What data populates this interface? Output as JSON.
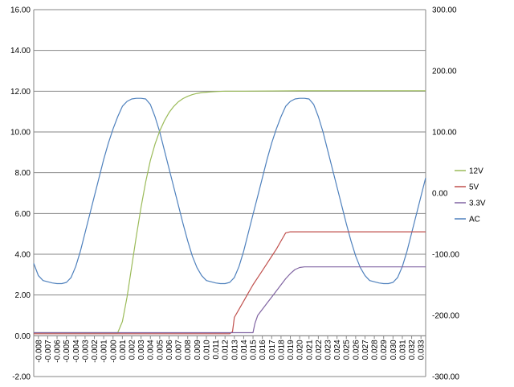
{
  "chart_data": {
    "type": "line",
    "title": "",
    "xlabel": "",
    "ylabel": "",
    "y2label": "",
    "grid": true,
    "legend_position": "right",
    "x_categories": [
      "-0.008",
      "-0.007",
      "-0.006",
      "-0.005",
      "-0.004",
      "-0.003",
      "-0.002",
      "-0.001",
      "-0.000",
      "0.001",
      "0.002",
      "0.003",
      "0.004",
      "0.005",
      "0.006",
      "0.007",
      "0.008",
      "0.009",
      "0.010",
      "0.011",
      "0.012",
      "0.013",
      "0.014",
      "0.015",
      "0.016",
      "0.017",
      "0.018",
      "0.019",
      "0.020",
      "0.021",
      "0.022",
      "0.023",
      "0.024",
      "0.025",
      "0.026",
      "0.027",
      "0.028",
      "0.029",
      "0.030",
      "0.031",
      "0.032",
      "0.033"
    ],
    "xlim": [
      -0.0085,
      0.0335
    ],
    "y_left": {
      "range": [
        -2,
        16
      ],
      "ticks": [
        "-2.00",
        "0.00",
        "2.00",
        "4.00",
        "6.00",
        "8.00",
        "10.00",
        "12.00",
        "14.00",
        "16.00"
      ]
    },
    "y_right": {
      "range": [
        -300,
        300
      ],
      "ticks": [
        "-300.00",
        "-200.00",
        "-100.00",
        "0.00",
        "100.00",
        "200.00",
        "300.00"
      ]
    },
    "series": [
      {
        "name": "12V",
        "axis": "left",
        "color": "#9BBB59",
        "x": [
          -0.0085,
          0.0005,
          0.001,
          0.0015,
          0.002,
          0.0025,
          0.003,
          0.0035,
          0.004,
          0.0045,
          0.005,
          0.0055,
          0.006,
          0.0065,
          0.007,
          0.0075,
          0.008,
          0.0085,
          0.009,
          0.0095,
          0.01,
          0.0105,
          0.011,
          0.012,
          0.014,
          0.02,
          0.0335
        ],
        "y": [
          0.15,
          0.15,
          0.7,
          1.9,
          3.4,
          4.9,
          6.3,
          7.55,
          8.6,
          9.4,
          10.05,
          10.55,
          10.95,
          11.25,
          11.48,
          11.64,
          11.75,
          11.83,
          11.89,
          11.93,
          11.95,
          11.97,
          11.98,
          12.0,
          12.0,
          12.02,
          12.02
        ]
      },
      {
        "name": "5V",
        "axis": "left",
        "color": "#C0504D",
        "x": [
          -0.0085,
          0.0125,
          0.0128,
          0.013,
          0.0135,
          0.014,
          0.0145,
          0.015,
          0.0155,
          0.016,
          0.0165,
          0.017,
          0.0175,
          0.018,
          0.0185,
          0.019,
          0.0335
        ],
        "y": [
          0.1,
          0.1,
          0.2,
          0.9,
          1.3,
          1.7,
          2.1,
          2.5,
          2.85,
          3.2,
          3.55,
          3.9,
          4.25,
          4.65,
          5.05,
          5.1,
          5.1
        ]
      },
      {
        "name": "3.3V",
        "axis": "left",
        "color": "#8064A2",
        "x": [
          -0.0085,
          0.014,
          0.0145,
          0.0148,
          0.015,
          0.0152,
          0.0155,
          0.016,
          0.0165,
          0.017,
          0.0175,
          0.018,
          0.0185,
          0.019,
          0.0195,
          0.02,
          0.0205,
          0.0335
        ],
        "y": [
          0.15,
          0.15,
          0.15,
          0.15,
          0.15,
          0.6,
          1.0,
          1.3,
          1.6,
          1.9,
          2.2,
          2.5,
          2.8,
          3.05,
          3.25,
          3.35,
          3.38,
          3.38
        ]
      },
      {
        "name": "AC",
        "axis": "right",
        "color": "#4F81BD",
        "x": [
          -0.0085,
          -0.008,
          -0.0075,
          -0.007,
          -0.0065,
          -0.006,
          -0.0055,
          -0.005,
          -0.0045,
          -0.004,
          -0.0035,
          -0.003,
          -0.0025,
          -0.002,
          -0.0015,
          -0.001,
          -0.0005,
          0.0,
          0.0005,
          0.001,
          0.0015,
          0.002,
          0.0025,
          0.003,
          0.0035,
          0.004,
          0.0045,
          0.005,
          0.0055,
          0.006,
          0.0065,
          0.007,
          0.0075,
          0.008,
          0.0085,
          0.009,
          0.0095,
          0.01,
          0.0105,
          0.011,
          0.0115,
          0.012,
          0.0125,
          0.013,
          0.0135,
          0.014,
          0.0145,
          0.015,
          0.0155,
          0.016,
          0.0165,
          0.017,
          0.0175,
          0.018,
          0.0185,
          0.019,
          0.0195,
          0.02,
          0.0205,
          0.021,
          0.0215,
          0.022,
          0.0225,
          0.023,
          0.0235,
          0.024,
          0.0245,
          0.025,
          0.0255,
          0.026,
          0.0265,
          0.027,
          0.0275,
          0.028,
          0.0285,
          0.029,
          0.0295,
          0.03,
          0.0305,
          0.031,
          0.0315,
          0.032,
          0.0325,
          0.033,
          0.0335
        ],
        "y": [
          -115,
          -135,
          -143,
          -145,
          -147,
          -148,
          -148,
          -146,
          -138,
          -120,
          -95,
          -65,
          -35,
          -5,
          25,
          55,
          82,
          105,
          125,
          142,
          150,
          154,
          155,
          155,
          154,
          145,
          125,
          100,
          70,
          40,
          10,
          -20,
          -50,
          -78,
          -103,
          -122,
          -135,
          -143,
          -145,
          -147,
          -148,
          -148,
          -146,
          -138,
          -120,
          -95,
          -65,
          -35,
          -5,
          25,
          55,
          82,
          105,
          125,
          142,
          150,
          154,
          155,
          155,
          154,
          145,
          125,
          100,
          70,
          40,
          10,
          -20,
          -50,
          -78,
          -103,
          -122,
          -135,
          -143,
          -145,
          -147,
          -148,
          -148,
          -146,
          -138,
          -120,
          -95,
          -65,
          -35,
          -5,
          25
        ]
      }
    ]
  }
}
